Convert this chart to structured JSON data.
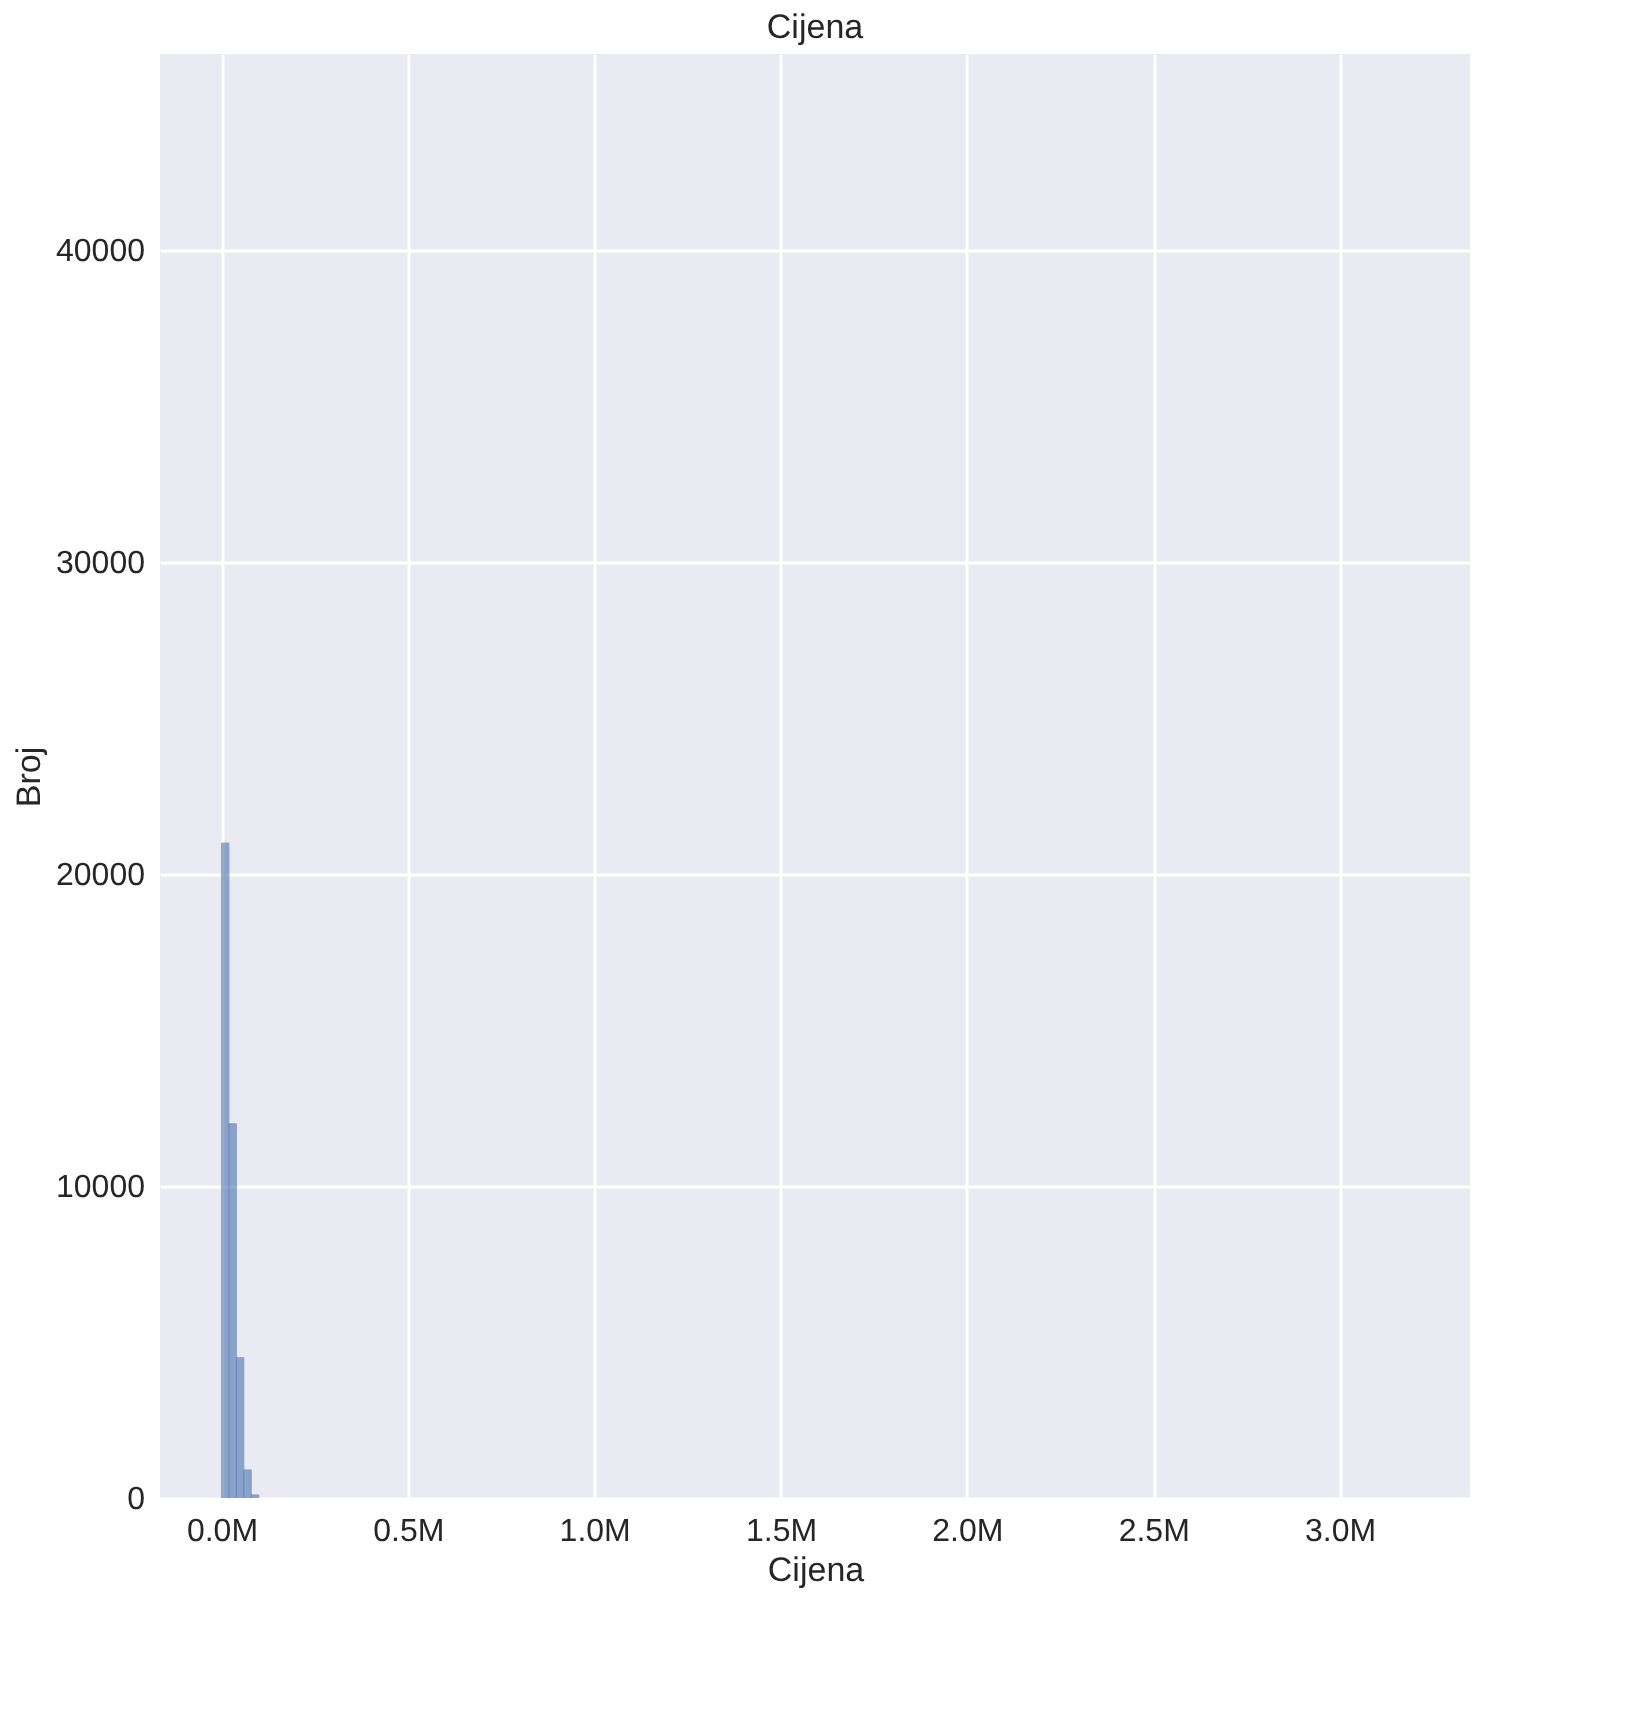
{
  "chart_data": {
    "type": "histogram",
    "title": "Cijena",
    "xlabel": "Cijena",
    "ylabel": "Broj",
    "bins": [
      0,
      20000,
      40000,
      60000,
      80000,
      100000
    ],
    "values": [
      21000,
      12000,
      4500,
      900,
      100
    ],
    "color": "#4c72b0",
    "xlim": [
      -165000,
      3350000
    ],
    "xticks": [
      {
        "value": 0,
        "label": "0.0M"
      },
      {
        "value": 500000,
        "label": "0.5M"
      },
      {
        "value": 1000000,
        "label": "1.0M"
      },
      {
        "value": 1500000,
        "label": "1.5M"
      },
      {
        "value": 2000000,
        "label": "2.0M"
      },
      {
        "value": 2500000,
        "label": "2.5M"
      },
      {
        "value": 3000000,
        "label": "3.0M"
      }
    ],
    "ylim": [
      0,
      46300
    ],
    "yticks": [
      0,
      {
        "value": 10000,
        "label": "10000"
      },
      {
        "value": 20000,
        "label": "20000"
      },
      {
        "value": 30000,
        "label": "30000"
      },
      {
        "value": 40000,
        "label": "40000"
      }
    ],
    "grid": true
  }
}
